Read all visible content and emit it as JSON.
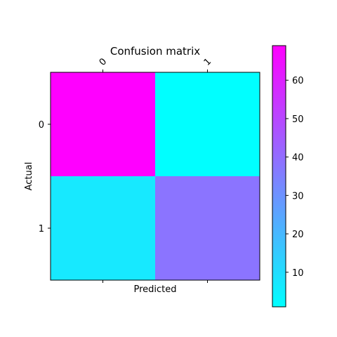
{
  "chart_data": {
    "type": "heatmap",
    "title": "Confusion matrix",
    "xlabel": "Predicted",
    "ylabel": "Actual",
    "x_categories": [
      "0",
      "1"
    ],
    "y_categories": [
      "0",
      "1"
    ],
    "values": [
      [
        69,
        1
      ],
      [
        7,
        38
      ]
    ],
    "colormap": "cool",
    "color_low": "#00ffff",
    "color_high": "#ff00ff",
    "colorbar": {
      "range": [
        1,
        69
      ],
      "ticks": [
        10,
        20,
        30,
        40,
        50,
        60
      ]
    }
  }
}
